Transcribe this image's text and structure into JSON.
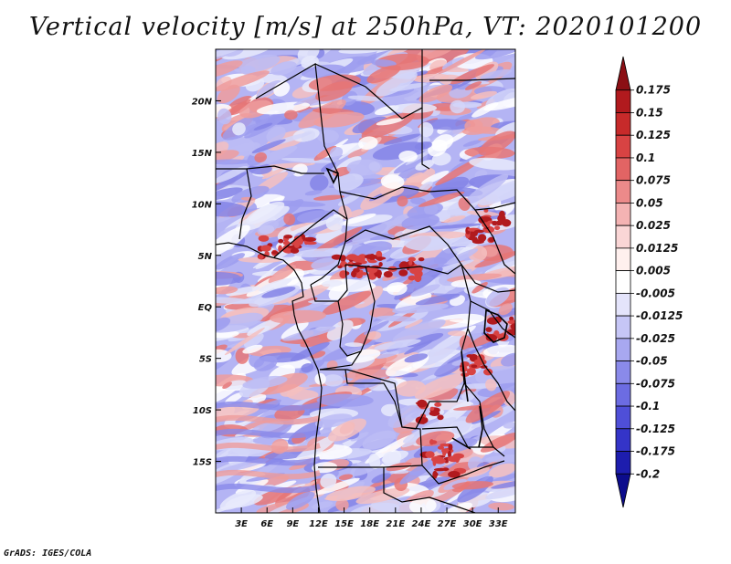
{
  "title": "Vertical velocity [m/s] at 250hPa, VT: 2020101200",
  "footer": "GrADS: IGES/COLA",
  "map": {
    "lat_labels": [
      "20N",
      "15N",
      "10N",
      "5N",
      "EQ",
      "5S",
      "10S",
      "15S"
    ],
    "lon_labels": [
      "3E",
      "6E",
      "9E",
      "12E",
      "15E",
      "18E",
      "21E",
      "24E",
      "27E",
      "30E",
      "33E"
    ],
    "lon_range": [
      0,
      35
    ],
    "lat_range": [
      -20,
      25
    ]
  },
  "colorbar": {
    "labels": [
      "0.175",
      "0.15",
      "0.125",
      "0.1",
      "0.075",
      "0.05",
      "0.025",
      "0.0125",
      "0.005",
      "-0.005",
      "-0.0125",
      "-0.025",
      "-0.05",
      "-0.075",
      "-0.1",
      "-0.125",
      "-0.175",
      "-0.2"
    ],
    "colors": [
      "#8b0f14",
      "#b11a1e",
      "#c72a2a",
      "#d84343",
      "#e26464",
      "#ec8a8a",
      "#f4b3b3",
      "#fad6d6",
      "#fff0ee",
      "#ffffff",
      "#e4e4fb",
      "#c6c6f6",
      "#a8a8f0",
      "#8a8aea",
      "#6c6ce2",
      "#4f4fd8",
      "#3434c8",
      "#1d1dae",
      "#0c0c8c"
    ]
  }
}
